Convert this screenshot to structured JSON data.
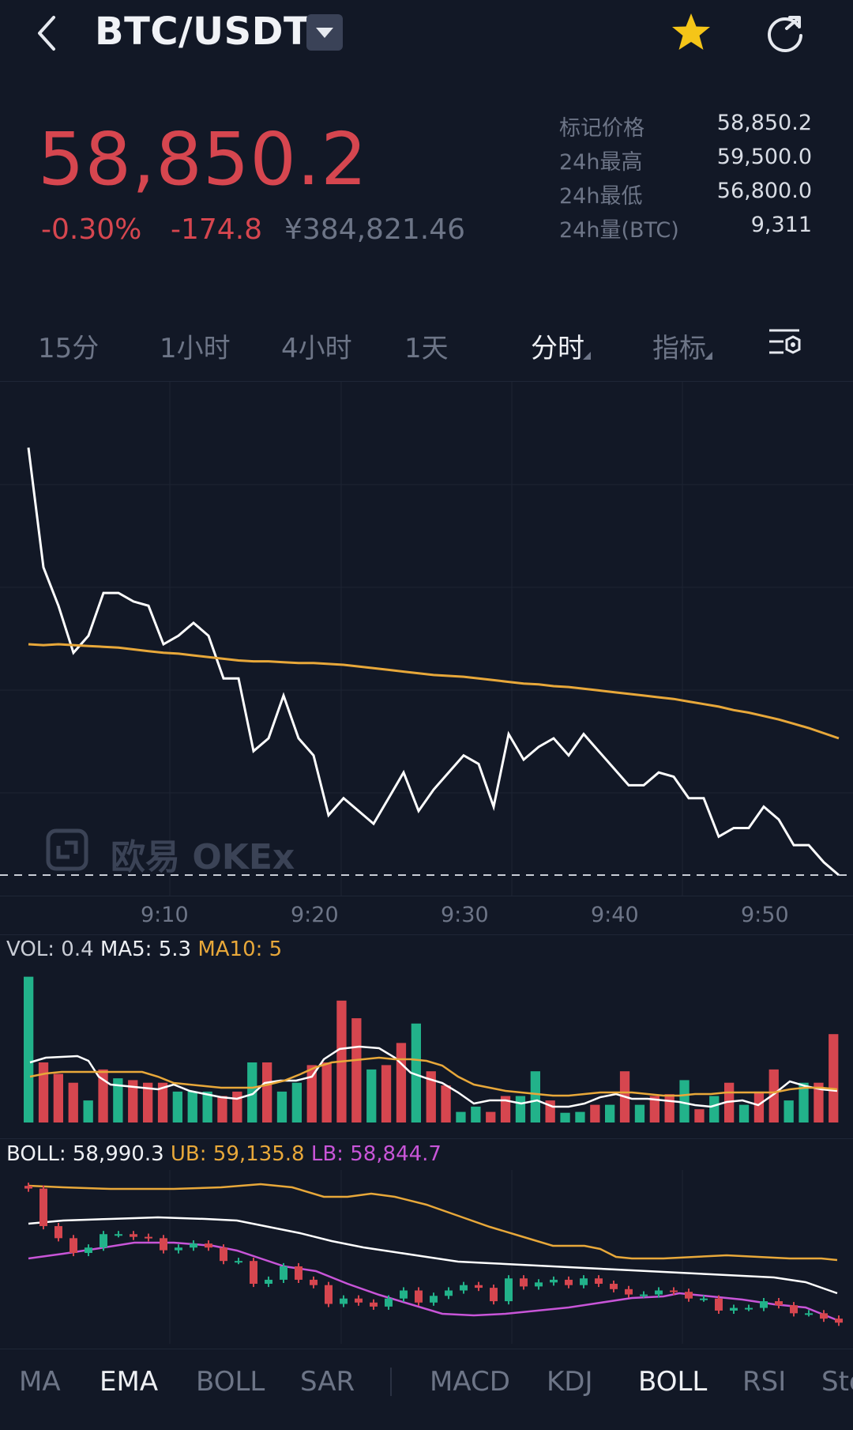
{
  "header": {
    "pair": "BTC/USDT",
    "icons": [
      "back-arrow-icon",
      "dropdown-caret-icon",
      "star-icon",
      "share-icon"
    ],
    "star_color": "#f5c518"
  },
  "price": {
    "last": "58,850.2",
    "change_pct": "-0.30%",
    "change_abs": "-174.8",
    "cny": "¥384,821.46",
    "down_color": "#d6464f"
  },
  "stats": [
    {
      "label": "标记价格",
      "value": "58,850.2"
    },
    {
      "label": "24h最高",
      "value": "59,500.0"
    },
    {
      "label": "24h最低",
      "value": "56,800.0"
    },
    {
      "label": "24h量(BTC)",
      "value": "9,311"
    }
  ],
  "timeframes": [
    {
      "label": "15分",
      "active": false
    },
    {
      "label": "1小时",
      "active": false
    },
    {
      "label": "4小时",
      "active": false
    },
    {
      "label": "1天",
      "active": false
    },
    {
      "label": "分时",
      "active": true
    },
    {
      "label": "指标",
      "active": false
    }
  ],
  "watermark": "欧易 OKEx",
  "time_axis": [
    "9:10",
    "9:20",
    "9:30",
    "9:40",
    "9:50"
  ],
  "volume_header": {
    "vol": "VOL: 0.4",
    "ma5": "MA5: 5.3",
    "ma10": "MA10: 5"
  },
  "boll_header": {
    "boll": "BOLL: 58,990.3",
    "ub": "UB: 59,135.8",
    "lb": "LB: 58,844.7"
  },
  "bottom_tabs": [
    {
      "label": "MA",
      "active": false
    },
    {
      "label": "EMA",
      "active": true
    },
    {
      "label": "BOLL",
      "active": false
    },
    {
      "label": "SAR",
      "active": false
    },
    {
      "label": "MACD",
      "active": false
    },
    {
      "label": "KDJ",
      "active": false
    },
    {
      "label": "BOLL",
      "active": true
    },
    {
      "label": "RSI",
      "active": false
    },
    {
      "label": "Sto",
      "active": false
    }
  ],
  "chart_data": [
    {
      "type": "line",
      "x": [
        "9:01",
        "9:02",
        "9:03",
        "9:04",
        "9:05",
        "9:06",
        "9:07",
        "9:08",
        "9:09",
        "9:10",
        "9:11",
        "9:12",
        "9:13",
        "9:14",
        "9:15",
        "9:16",
        "9:17",
        "9:18",
        "9:19",
        "9:20",
        "9:21",
        "9:22",
        "9:23",
        "9:24",
        "9:25",
        "9:26",
        "9:27",
        "9:28",
        "9:29",
        "9:30",
        "9:31",
        "9:32",
        "9:33",
        "9:34",
        "9:35",
        "9:36",
        "9:37",
        "9:38",
        "9:39",
        "9:40",
        "9:41",
        "9:42",
        "9:43",
        "9:44",
        "9:45",
        "9:46",
        "9:47",
        "9:48",
        "9:49",
        "9:50",
        "9:51",
        "9:52",
        "9:53",
        "9:54",
        "9:55"
      ],
      "series": [
        {
          "values": [
            59280,
            59140,
            59095,
            59040,
            59060,
            59110,
            59110,
            59100,
            59095,
            59050,
            59060,
            59075,
            59060,
            59010,
            59010,
            58925,
            58940,
            58990,
            58940,
            58920,
            58850,
            58870,
            58855,
            58840,
            58870,
            58900,
            58855,
            58880,
            58900,
            58920,
            58910,
            58860,
            58945,
            58915,
            58930,
            58940,
            58920,
            58945,
            58925,
            58905,
            58885,
            58885,
            58900,
            58895,
            58870,
            58870,
            58825,
            58835,
            58835,
            58860,
            58845,
            58815,
            58815,
            58795,
            58780
          ],
          "color": "#ffffff"
        },
        {
          "values": [
            59050,
            59049,
            59050,
            59049,
            59048,
            59047,
            59046,
            59044,
            59042,
            59040,
            59039,
            59037,
            59035,
            59033,
            59031,
            59030,
            59030,
            59029,
            59028,
            59028,
            59027,
            59026,
            59024,
            59022,
            59020,
            59018,
            59016,
            59014,
            59013,
            59012,
            59010,
            59008,
            59006,
            59004,
            59003,
            59001,
            59000,
            58998,
            58996,
            58994,
            58992,
            58990,
            58988,
            58986,
            58983,
            58980,
            58977,
            58973,
            58970,
            58966,
            58962,
            58957,
            58952,
            58946,
            58940
          ],
          "color": "#e8a83a"
        }
      ],
      "ylim": [
        58780,
        59320
      ]
    },
    {
      "type": "bar",
      "categories": [
        "9:01",
        "9:02",
        "9:03",
        "9:04",
        "9:05",
        "9:06",
        "9:07",
        "9:08",
        "9:09",
        "9:10",
        "9:11",
        "9:12",
        "9:13",
        "9:14",
        "9:15",
        "9:16",
        "9:17",
        "9:18",
        "9:19",
        "9:20",
        "9:21",
        "9:22",
        "9:23",
        "9:24",
        "9:25",
        "9:26",
        "9:27",
        "9:28",
        "9:29",
        "9:30",
        "9:31",
        "9:32",
        "9:33",
        "9:34",
        "9:35",
        "9:36",
        "9:37",
        "9:38",
        "9:39",
        "9:40",
        "9:41",
        "9:42",
        "9:43",
        "9:44",
        "9:45",
        "9:46",
        "9:47",
        "9:48",
        "9:49",
        "9:50",
        "9:51",
        "9:52",
        "9:53",
        "9:54",
        "9:55"
      ],
      "values": [
        16.5,
        6.8,
        5.5,
        4.5,
        2.5,
        6.0,
        5.0,
        4.8,
        4.5,
        4.5,
        3.5,
        3.5,
        3.5,
        3.0,
        3.5,
        6.8,
        6.8,
        3.5,
        4.5,
        6.5,
        6.8,
        13.8,
        11.8,
        6.0,
        6.5,
        9.0,
        11.2,
        5.8,
        4.2,
        1.2,
        1.8,
        1.2,
        3.0,
        3.0,
        5.8,
        2.5,
        1.1,
        1.2,
        2.0,
        2.0,
        5.8,
        2.0,
        3.0,
        3.2,
        4.8,
        1.5,
        3.0,
        4.5,
        2.0,
        3.5,
        6.0,
        2.5,
        4.5,
        4.5,
        10.0
      ],
      "colors": [
        "g",
        "r",
        "r",
        "r",
        "g",
        "r",
        "g",
        "r",
        "r",
        "r",
        "g",
        "g",
        "g",
        "r",
        "r",
        "g",
        "r",
        "g",
        "g",
        "r",
        "r",
        "r",
        "r",
        "g",
        "r",
        "r",
        "g",
        "r",
        "r",
        "g",
        "g",
        "r",
        "r",
        "g",
        "g",
        "r",
        "g",
        "g",
        "r",
        "g",
        "r",
        "g",
        "r",
        "r",
        "g",
        "r",
        "g",
        "r",
        "g",
        "r",
        "r",
        "g",
        "g",
        "r",
        "r"
      ],
      "up_color": "#22b28a",
      "down_color": "#d6464f",
      "ylim": [
        0,
        17
      ]
    }
  ]
}
